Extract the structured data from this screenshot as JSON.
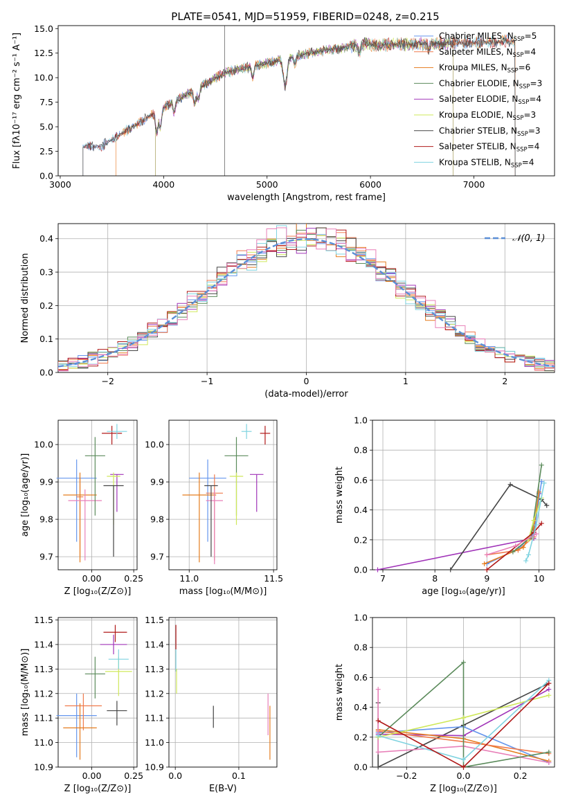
{
  "figure": {
    "title": "PLATE=0541, MJD=51959, FIBERID=0248, z=0.215"
  },
  "colors": {
    "Chabrier MILES": "#6495ed",
    "Salpeter MILES": "#f07a4c",
    "Kroupa MILES": "#e57c1e",
    "Chabrier ELODIE": "#5a8a5a",
    "Salpeter ELODIE": "#a033b8",
    "Kroupa ELODIE": "#cfe85a",
    "Chabrier STELIB": "#444444",
    "Salpeter STELIB": "#b01818",
    "Kroupa STELIB": "#7fd3e0",
    "pink": "#e87fb8",
    "gauss": "#5b8fd6",
    "grid": "#b0b0b0"
  },
  "chart_data": [
    {
      "id": "spectrum",
      "type": "line",
      "xlabel": "wavelength [Angstrom, rest frame]",
      "ylabel": "Flux [fλ10⁻¹⁷ erg cm⁻² s⁻¹ A⁻¹]",
      "xlim": [
        2980,
        7780
      ],
      "ylim": [
        0,
        15.3
      ],
      "xticks": [
        3000,
        4000,
        5000,
        6000,
        7000
      ],
      "yticks": [
        0.0,
        2.5,
        5.0,
        7.5,
        10.0,
        12.5,
        15.0
      ],
      "grid": false,
      "legend_location": "right",
      "series": [
        {
          "name": "Chabrier MILES, N_SSP=5",
          "label": "Chabrier MILES, N",
          "nssp": "=5",
          "start": 3220,
          "end": 7400
        },
        {
          "name": "Salpeter MILES, N_SSP=4",
          "label": "Salpeter MILES, N",
          "nssp": "=4",
          "start": 3540,
          "end": 7400
        },
        {
          "name": "Kroupa MILES, N_SSP=6",
          "label": "Kroupa MILES, N",
          "nssp": "=6",
          "start": 3540,
          "end": 7400
        },
        {
          "name": "Chabrier ELODIE, N_SSP=3",
          "label": "Chabrier ELODIE, N",
          "nssp": "=3",
          "start": 3920,
          "end": 6800
        },
        {
          "name": "Salpeter ELODIE, N_SSP=4",
          "label": "Salpeter ELODIE, N",
          "nssp": "=4",
          "start": 3920,
          "end": 6800
        },
        {
          "name": "Kroupa ELODIE, N_SSP=3",
          "label": "Kroupa ELODIE, N",
          "nssp": "=3",
          "start": 3920,
          "end": 6800
        },
        {
          "name": "Chabrier STELIB, N_SSP=3",
          "label": "Chabrier STELIB, N",
          "nssp": "=3",
          "start": 3220,
          "end": 7400
        },
        {
          "name": "Salpeter STELIB, N_SSP=4",
          "label": "Salpeter STELIB, N",
          "nssp": "=4",
          "start": 3220,
          "end": 7400
        },
        {
          "name": "Kroupa STELIB, N_SSP=4",
          "label": "Kroupa STELIB, N",
          "nssp": "=4",
          "start": 3220,
          "end": 7400
        }
      ],
      "spike": {
        "x": 4590,
        "y": 15.3
      }
    },
    {
      "id": "residuals",
      "type": "bar",
      "xlabel": "(data-model)/error",
      "ylabel": "Normed distribution",
      "xlim": [
        -2.5,
        2.5
      ],
      "ylim": [
        0,
        0.445
      ],
      "xticks": [
        -2,
        -1,
        0,
        1,
        2
      ],
      "yticks": [
        0.0,
        0.1,
        0.2,
        0.3,
        0.4
      ],
      "grid": true,
      "legend_location": "top-right",
      "gaussian_label": "𝒩(0, 1)"
    },
    {
      "id": "age_vs_Z",
      "type": "scatter",
      "xlabel": "Z [log₁₀(Z/Z⊙)]",
      "ylabel": "age  [log₁₀(age/yr)]",
      "xlim": [
        -0.2,
        0.27
      ],
      "ylim": [
        9.665,
        10.065
      ],
      "xticks": [
        0.0,
        0.25
      ],
      "xticklabels": [
        "0.00",
        "0.25"
      ],
      "yticks": [
        9.7,
        9.8,
        9.9,
        10.0
      ],
      "yticklabels": [
        "9.7",
        "9.8",
        "9.9",
        "10.0"
      ],
      "grid": true,
      "points": [
        {
          "model": "Chabrier MILES",
          "x": -0.09,
          "xerr": 0.12,
          "y": 9.91,
          "yerr_lo": 0.17,
          "yerr_hi": 0.05
        },
        {
          "model": "Salpeter MILES",
          "x": -0.07,
          "xerr": 0.02,
          "y": 9.86,
          "yerr_lo": 0.16,
          "yerr_hi": 0.05
        },
        {
          "model": "Kroupa MILES",
          "x": -0.07,
          "xerr": 0.1,
          "y": 9.865,
          "yerr_lo": 0.18,
          "yerr_hi": 0.06
        },
        {
          "model": "pink",
          "x": -0.04,
          "xerr": 0.1,
          "y": 9.85,
          "yerr_lo": 0.16,
          "yerr_hi": 0.03
        },
        {
          "model": "Chabrier ELODIE",
          "x": 0.02,
          "xerr": 0.06,
          "y": 9.97,
          "yerr_lo": 0.16,
          "yerr_hi": 0.05
        },
        {
          "model": "Salpeter ELODIE",
          "x": 0.15,
          "xerr": 0.04,
          "y": 9.92,
          "yerr_lo": 0.1,
          "yerr_hi": 0.0
        },
        {
          "model": "Kroupa ELODIE",
          "x": 0.13,
          "xerr": 0.04,
          "y": 9.915,
          "yerr_lo": 0.13,
          "yerr_hi": 0.01
        },
        {
          "model": "Chabrier STELIB",
          "x": 0.13,
          "xerr": 0.06,
          "y": 9.89,
          "yerr_lo": 0.19,
          "yerr_hi": 0.0
        },
        {
          "model": "Salpeter STELIB",
          "x": 0.12,
          "xerr": 0.06,
          "y": 10.03,
          "yerr_lo": 0.03,
          "yerr_hi": 0.02
        },
        {
          "model": "Kroupa STELIB",
          "x": 0.15,
          "xerr": 0.06,
          "y": 10.035,
          "yerr_lo": 0.02,
          "yerr_hi": 0.02
        }
      ]
    },
    {
      "id": "age_vs_mass",
      "type": "scatter",
      "xlabel": "mass [log₁₀(M/M⊙)]",
      "ylabel": "",
      "xlim": [
        10.88,
        11.52
      ],
      "ylim": [
        9.665,
        10.065
      ],
      "xticks": [
        11.0,
        11.5
      ],
      "xticklabels": [
        "11.0",
        "11.5"
      ],
      "yticks": [
        9.7,
        9.8,
        9.9,
        10.0
      ],
      "yticklabels": [
        "9.7",
        "9.8",
        "9.9",
        "10.0"
      ],
      "grid": true,
      "points": [
        {
          "model": "Chabrier MILES",
          "x": 11.11,
          "xerr": 0.11,
          "y": 9.91,
          "yerr_lo": 0.17,
          "yerr_hi": 0.05
        },
        {
          "model": "Salpeter MILES",
          "x": 11.15,
          "xerr": 0.05,
          "y": 9.87,
          "yerr_lo": 0.18,
          "yerr_hi": 0.05
        },
        {
          "model": "Kroupa MILES",
          "x": 11.06,
          "xerr": 0.1,
          "y": 9.865,
          "yerr_lo": 0.18,
          "yerr_hi": 0.06
        },
        {
          "model": "pink",
          "x": 11.15,
          "xerr": 0.05,
          "y": 9.85,
          "yerr_lo": 0.17,
          "yerr_hi": 0.03
        },
        {
          "model": "Chabrier ELODIE",
          "x": 11.28,
          "xerr": 0.07,
          "y": 9.97,
          "yerr_lo": 0.16,
          "yerr_hi": 0.05
        },
        {
          "model": "Salpeter ELODIE",
          "x": 11.4,
          "xerr": 0.04,
          "y": 9.92,
          "yerr_lo": 0.1,
          "yerr_hi": 0.0
        },
        {
          "model": "Kroupa ELODIE",
          "x": 11.28,
          "xerr": 0.04,
          "y": 9.915,
          "yerr_lo": 0.13,
          "yerr_hi": 0.01
        },
        {
          "model": "Chabrier STELIB",
          "x": 11.13,
          "xerr": 0.04,
          "y": 9.89,
          "yerr_lo": 0.19,
          "yerr_hi": 0.0
        },
        {
          "model": "Salpeter STELIB",
          "x": 11.45,
          "xerr": 0.03,
          "y": 10.03,
          "yerr_lo": 0.03,
          "yerr_hi": 0.02
        },
        {
          "model": "Kroupa STELIB",
          "x": 11.34,
          "xerr": 0.03,
          "y": 10.035,
          "yerr_lo": 0.02,
          "yerr_hi": 0.02
        }
      ]
    },
    {
      "id": "massweight_vs_age",
      "type": "line",
      "xlabel": "age  [log₁₀(age/yr)]",
      "ylabel": "mass weight",
      "xlim": [
        6.8,
        10.3
      ],
      "ylim": [
        0,
        1.0
      ],
      "xticks": [
        7,
        8,
        9,
        10
      ],
      "yticks": [
        0.0,
        0.2,
        0.4,
        0.6,
        0.8,
        1.0
      ],
      "grid": true,
      "series": [
        {
          "model": "Salpeter ELODIE",
          "x": [
            6.9,
            9.9,
            10.0
          ],
          "y": [
            0.0,
            0.21,
            0.51
          ]
        },
        {
          "model": "Chabrier STELIB",
          "x": [
            8.3,
            9.45,
            10.05,
            10.15
          ],
          "y": [
            0.0,
            0.57,
            0.47,
            0.43
          ]
        },
        {
          "model": "Chabrier MILES",
          "x": [
            9.0,
            9.6,
            9.9,
            10.05
          ],
          "y": [
            0.04,
            0.14,
            0.24,
            0.59
          ]
        },
        {
          "model": "Salpeter MILES",
          "x": [
            9.0,
            9.6,
            9.9
          ],
          "y": [
            0.1,
            0.13,
            0.22
          ]
        },
        {
          "model": "Kroupa MILES",
          "x": [
            8.95,
            9.7,
            9.9,
            10.0
          ],
          "y": [
            0.04,
            0.15,
            0.28,
            0.52
          ]
        },
        {
          "model": "Chabrier ELODIE",
          "x": [
            9.5,
            9.85,
            10.05
          ],
          "y": [
            0.12,
            0.22,
            0.7
          ]
        },
        {
          "model": "Kroupa ELODIE",
          "x": [
            9.8,
            9.9,
            10.05
          ],
          "y": [
            0.2,
            0.33,
            0.48
          ]
        },
        {
          "model": "Salpeter STELIB",
          "x": [
            9.0,
            9.9,
            10.05
          ],
          "y": [
            0.0,
            0.25,
            0.31
          ]
        },
        {
          "model": "Kroupa STELIB",
          "x": [
            9.75,
            9.8,
            9.95,
            10.1
          ],
          "y": [
            0.06,
            0.1,
            0.3,
            0.58
          ]
        },
        {
          "model": "pink",
          "x": [
            9.0,
            9.55,
            9.95
          ],
          "y": [
            0.1,
            0.16,
            0.24
          ]
        }
      ]
    },
    {
      "id": "mass_vs_Z",
      "type": "scatter",
      "xlabel": "Z [log₁₀(Z/Z⊙)]",
      "ylabel": "mass [log₁₀(M/M⊙)]",
      "xlim": [
        -0.2,
        0.27
      ],
      "ylim": [
        10.9,
        11.51
      ],
      "xticks": [
        0.0,
        0.25
      ],
      "xticklabels": [
        "0.00",
        "0.25"
      ],
      "yticks": [
        10.9,
        11.0,
        11.1,
        11.2,
        11.3,
        11.4,
        11.5
      ],
      "yticklabels": [
        "10.9",
        "11.0",
        "11.1",
        "11.2",
        "11.3",
        "11.4",
        "11.5"
      ],
      "grid": true,
      "points": [
        {
          "model": "Chabrier MILES",
          "x": -0.09,
          "xerr": 0.12,
          "y": 11.11,
          "yerr_lo": 0.17,
          "yerr_hi": 0.09
        },
        {
          "model": "Salpeter MILES",
          "x": -0.05,
          "xerr": 0.11,
          "y": 11.15,
          "yerr_lo": 0.1,
          "yerr_hi": 0.05
        },
        {
          "model": "Kroupa MILES",
          "x": -0.07,
          "xerr": 0.1,
          "y": 11.06,
          "yerr_lo": 0.13,
          "yerr_hi": 0.1
        },
        {
          "model": "Chabrier ELODIE",
          "x": 0.02,
          "xerr": 0.06,
          "y": 11.28,
          "yerr_lo": 0.1,
          "yerr_hi": 0.07
        },
        {
          "model": "Salpeter ELODIE",
          "x": 0.13,
          "xerr": 0.08,
          "y": 11.4,
          "yerr_lo": 0.04,
          "yerr_hi": 0.04
        },
        {
          "model": "Kroupa ELODIE",
          "x": 0.16,
          "xerr": 0.08,
          "y": 11.29,
          "yerr_lo": 0.1,
          "yerr_hi": 0.06
        },
        {
          "model": "Chabrier STELIB",
          "x": 0.15,
          "xerr": 0.06,
          "y": 11.13,
          "yerr_lo": 0.06,
          "yerr_hi": 0.04
        },
        {
          "model": "Salpeter STELIB",
          "x": 0.14,
          "xerr": 0.07,
          "y": 11.45,
          "yerr_lo": 0.04,
          "yerr_hi": 0.03
        },
        {
          "model": "Kroupa STELIB",
          "x": 0.16,
          "xerr": 0.06,
          "y": 11.34,
          "yerr_lo": 0.04,
          "yerr_hi": 0.04
        }
      ]
    },
    {
      "id": "mass_vs_ebv",
      "type": "scatter",
      "xlabel": "E(B-V)",
      "ylabel": "",
      "xlim": [
        -0.01,
        0.16
      ],
      "ylim": [
        10.9,
        11.51
      ],
      "xticks": [
        0.0,
        0.1
      ],
      "xticklabels": [
        "0.0",
        "0.1"
      ],
      "yticks": [
        10.9,
        11.0,
        11.1,
        11.2,
        11.3,
        11.4,
        11.5
      ],
      "yticklabels": [
        "10.9",
        "11.0",
        "11.1",
        "11.2",
        "11.3",
        "11.4",
        "11.5"
      ],
      "grid": true,
      "points": [
        {
          "model": "Salpeter STELIB",
          "x": 0.001,
          "y": 11.43,
          "yerr_lo": 0.05,
          "yerr_hi": 0.05
        },
        {
          "model": "Kroupa STELIB",
          "x": 0.001,
          "y": 11.34,
          "yerr_lo": 0.05,
          "yerr_hi": 0.04
        },
        {
          "model": "Kroupa ELODIE",
          "x": 0.002,
          "y": 11.27,
          "yerr_lo": 0.07,
          "yerr_hi": 0.03
        },
        {
          "model": "Chabrier STELIB",
          "x": 0.06,
          "y": 11.11,
          "yerr_lo": 0.05,
          "yerr_hi": 0.04
        },
        {
          "model": "pink",
          "x": 0.146,
          "y": 11.12,
          "yerr_lo": 0.09,
          "yerr_hi": 0.08
        },
        {
          "model": "Kroupa MILES",
          "x": 0.149,
          "y": 11.04,
          "yerr_lo": 0.11,
          "yerr_hi": 0.11
        }
      ]
    },
    {
      "id": "massweight_vs_Z",
      "type": "line",
      "xlabel": "Z [log₁₀(Z/Z⊙)]",
      "ylabel": "mass weight",
      "xlim": [
        -0.32,
        0.32
      ],
      "ylim": [
        0,
        1.0
      ],
      "xticks": [
        -0.2,
        0.0,
        0.2
      ],
      "xticklabels": [
        "−0.2",
        "0.0",
        "0.2"
      ],
      "yticks": [
        0.0,
        0.2,
        0.4,
        0.6,
        0.8,
        1.0
      ],
      "grid": true,
      "series": [
        {
          "model": "Chabrier STELIB",
          "x": [
            -0.3,
            -0.3,
            0.0,
            0.3
          ],
          "y": [
            0.43,
            0.0,
            0.28,
            0.56
          ]
        },
        {
          "model": "Salpeter ELODIE",
          "x": [
            -0.3,
            0.0,
            0.3
          ],
          "y": [
            0.22,
            0.21,
            0.52
          ]
        },
        {
          "model": "Chabrier MILES",
          "x": [
            -0.3,
            0.0,
            0.3
          ],
          "y": [
            0.23,
            0.27,
            0.03
          ]
        },
        {
          "model": "Kroupa MILES",
          "x": [
            -0.3,
            0.0,
            0.3
          ],
          "y": [
            0.25,
            0.19,
            0.04
          ]
        },
        {
          "model": "Salpeter MILES",
          "x": [
            -0.3,
            0.0,
            0.3
          ],
          "y": [
            0.24,
            0.17,
            0.09
          ]
        },
        {
          "model": "pink",
          "x": [
            -0.3,
            -0.3,
            0.0,
            0.3
          ],
          "y": [
            0.52,
            0.1,
            0.14,
            0.03
          ]
        },
        {
          "model": "Chabrier ELODIE",
          "x": [
            -0.3,
            0.0,
            0.0,
            0.3
          ],
          "y": [
            0.2,
            0.7,
            0.0,
            0.1
          ]
        },
        {
          "model": "Kroupa ELODIE",
          "x": [
            -0.3,
            0.0,
            0.3
          ],
          "y": [
            0.2,
            0.33,
            0.48
          ]
        },
        {
          "model": "Kroupa STELIB",
          "x": [
            -0.3,
            0.0,
            0.3
          ],
          "y": [
            0.21,
            0.05,
            0.58
          ]
        },
        {
          "model": "Salpeter STELIB",
          "x": [
            -0.3,
            0.0,
            0.3
          ],
          "y": [
            0.31,
            0.0,
            0.56
          ]
        }
      ]
    }
  ]
}
